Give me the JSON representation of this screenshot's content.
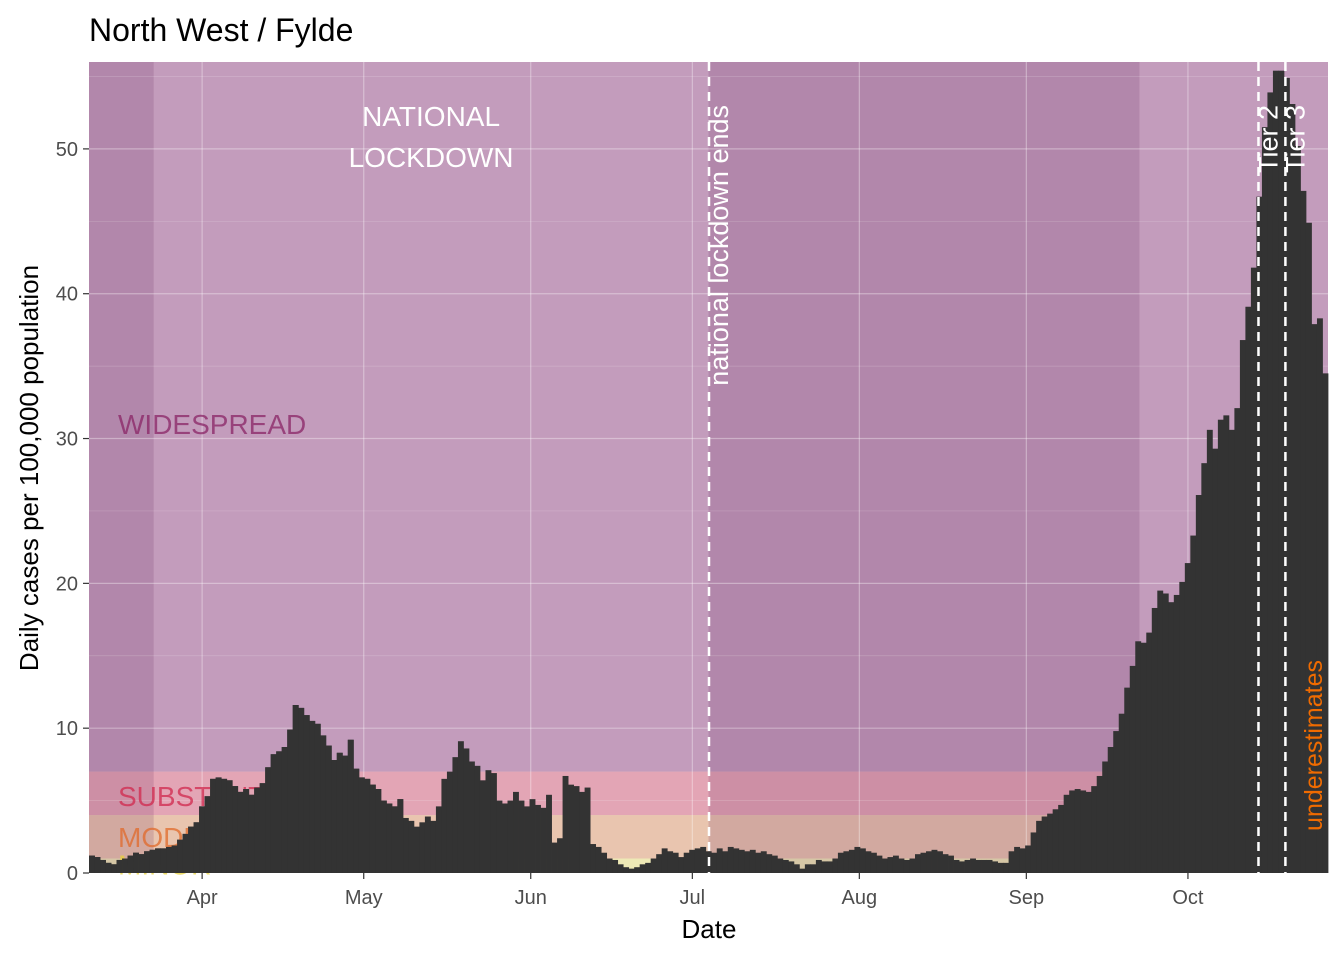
{
  "chart_data": {
    "type": "bar",
    "title": "North West / Fylde",
    "xlabel": "Date",
    "ylabel": "Daily cases per 100,000 population",
    "x_start": "2020-03-11",
    "x_end": "2020-10-26",
    "ylim": [
      0,
      56
    ],
    "yticks": [
      0,
      10,
      20,
      30,
      40,
      50
    ],
    "xticks": [
      {
        "date": "2020-04-01",
        "label": "Apr"
      },
      {
        "date": "2020-05-01",
        "label": "May"
      },
      {
        "date": "2020-06-01",
        "label": "Jun"
      },
      {
        "date": "2020-07-01",
        "label": "Jul"
      },
      {
        "date": "2020-08-01",
        "label": "Aug"
      },
      {
        "date": "2020-09-01",
        "label": "Sep"
      },
      {
        "date": "2020-10-01",
        "label": "Oct"
      }
    ],
    "bar_color": "#333333",
    "values": [
      1.2,
      1.1,
      0.9,
      0.7,
      0.6,
      0.9,
      1.0,
      1.2,
      1.4,
      1.3,
      1.5,
      1.6,
      1.7,
      1.7,
      1.8,
      1.9,
      2.3,
      2.7,
      3.2,
      3.5,
      4.6,
      5.3,
      6.5,
      6.6,
      6.5,
      6.4,
      6.0,
      5.6,
      5.8,
      5.4,
      5.9,
      6.2,
      7.3,
      8.2,
      8.4,
      8.7,
      9.9,
      11.6,
      11.4,
      10.9,
      10.5,
      10.3,
      9.5,
      8.8,
      7.8,
      8.3,
      8.1,
      9.2,
      7.2,
      6.6,
      6.5,
      6.1,
      5.8,
      5.0,
      4.8,
      4.6,
      5.1,
      3.8,
      3.6,
      3.2,
      3.5,
      3.9,
      3.6,
      4.6,
      6.5,
      7.0,
      8.0,
      9.1,
      8.6,
      7.7,
      7.4,
      6.4,
      7.1,
      6.9,
      5.0,
      4.8,
      5.0,
      5.6,
      5.0,
      4.6,
      5.1,
      4.7,
      4.5,
      5.4,
      2.1,
      2.4,
      6.7,
      6.1,
      6.0,
      5.6,
      5.9,
      2.0,
      1.8,
      1.4,
      1.0,
      0.9,
      0.6,
      0.4,
      0.3,
      0.4,
      0.6,
      0.7,
      1.0,
      1.3,
      1.7,
      1.5,
      1.4,
      1.1,
      1.4,
      1.6,
      1.7,
      1.8,
      1.5,
      1.4,
      1.7,
      1.5,
      1.8,
      1.7,
      1.6,
      1.5,
      1.6,
      1.4,
      1.5,
      1.3,
      1.2,
      1.0,
      0.9,
      0.8,
      0.6,
      0.3,
      0.6,
      0.6,
      0.9,
      0.8,
      0.8,
      1.0,
      1.4,
      1.5,
      1.6,
      1.8,
      1.7,
      1.5,
      1.4,
      1.2,
      1.0,
      1.1,
      1.2,
      1.0,
      0.9,
      1.0,
      1.3,
      1.4,
      1.5,
      1.6,
      1.5,
      1.3,
      1.2,
      0.9,
      0.8,
      0.9,
      1.0,
      0.9,
      0.9,
      0.9,
      0.8,
      0.7,
      0.7,
      1.5,
      1.8,
      1.7,
      1.9,
      2.8,
      3.6,
      3.9,
      4.1,
      4.4,
      4.7,
      5.4,
      5.7,
      5.8,
      5.7,
      5.6,
      6.0,
      6.7,
      7.7,
      8.7,
      9.8,
      11.0,
      12.8,
      14.3,
      16.0,
      15.9,
      16.6,
      18.3,
      19.5,
      19.3,
      18.7,
      19.2,
      20.1,
      21.4,
      23.3,
      26.1,
      28.3,
      30.6,
      29.3,
      31.3,
      31.6,
      30.6,
      32.1,
      36.8,
      39.1,
      41.8,
      46.7,
      51.5,
      53.9,
      55.4,
      55.4,
      54.9,
      53.1,
      50.2,
      47.1,
      44.9,
      37.9,
      38.3,
      34.5
    ]
  },
  "zones": [
    {
      "label": "WIDESPREAD",
      "color": "#a35b96"
    },
    {
      "label": "SUBSTANTIAL",
      "color": "#dc6b88"
    },
    {
      "label": "MODERATE",
      "color": "#e8a57e"
    },
    {
      "label": "MINOR",
      "color": "#f0e88a"
    }
  ],
  "periods": [
    {
      "label": "NATIONAL\nLOCKDOWN",
      "start": "2020-03-23",
      "end": "2020-07-04"
    }
  ],
  "events": [
    {
      "label": "national lockdown ends",
      "date": "2020-07-04"
    },
    {
      "label": "Tier 2",
      "date": "2020-10-14"
    },
    {
      "label": "Tier 3",
      "date": "2020-10-19"
    }
  ],
  "note": {
    "label": "underestimates",
    "color": "#f06b00"
  }
}
